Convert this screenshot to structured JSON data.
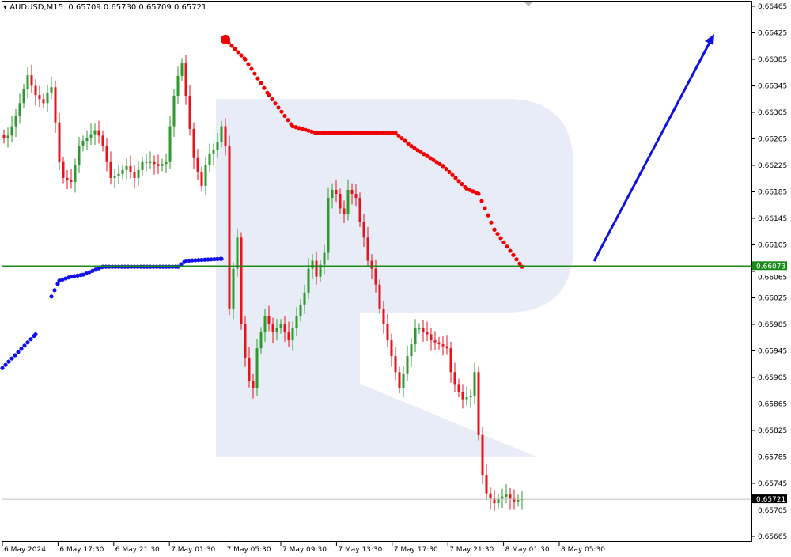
{
  "header": {
    "symbol": "AUDUSD,M15",
    "ohlc": "0.65709 0.65730 0.65709 0.65721"
  },
  "chart_data": {
    "type": "candlestick",
    "ylim": [
      0.65665,
      0.66465
    ],
    "y_ticks": [
      "0.66465",
      "0.66425",
      "0.66385",
      "0.66345",
      "0.66305",
      "0.66265",
      "0.66225",
      "0.66185",
      "0.66145",
      "0.66105",
      "0.66065",
      "0.66025",
      "0.65985",
      "0.65945",
      "0.65905",
      "0.65865",
      "0.65825",
      "0.65785",
      "0.65745",
      "0.65705",
      "0.65665"
    ],
    "x_ticks": [
      "6 May 2024",
      "6 May 17:30",
      "6 May 21:30",
      "7 May 01:30",
      "7 May 05:30",
      "7 May 09:30",
      "7 May 13:30",
      "7 May 17:30",
      "7 May 21:30",
      "8 May 01:30",
      "8 May 05:30"
    ],
    "closes": [
      0.66266,
      0.6627,
      0.66284,
      0.663,
      0.66319,
      0.6634,
      0.66361,
      0.66345,
      0.66331,
      0.66325,
      0.66319,
      0.66335,
      0.66343,
      0.6629,
      0.6623,
      0.66206,
      0.66203,
      0.662,
      0.66225,
      0.66254,
      0.66262,
      0.66266,
      0.66272,
      0.66278,
      0.6627,
      0.66254,
      0.6623,
      0.66206,
      0.66209,
      0.66212,
      0.66218,
      0.66224,
      0.66215,
      0.66206,
      0.66218,
      0.6623,
      0.6623,
      0.6623,
      0.66227,
      0.66224,
      0.66227,
      0.6623,
      0.66284,
      0.6633,
      0.6636,
      0.66379,
      0.6633,
      0.6628,
      0.66236,
      0.66215,
      0.66194,
      0.66225,
      0.66242,
      0.66248,
      0.6626,
      0.66284,
      0.66254,
      0.66009,
      0.66069,
      0.66116,
      0.65985,
      0.65935,
      0.659,
      0.65889,
      0.65949,
      0.65973,
      0.65997,
      0.65985,
      0.65973,
      0.65979,
      0.65985,
      0.65973,
      0.65961,
      0.65979,
      0.65997,
      0.66015,
      0.66033,
      0.66069,
      0.66081,
      0.66057,
      0.66075,
      0.66093,
      0.66176,
      0.66188,
      0.66182,
      0.6616,
      0.66152,
      0.66188,
      0.66182,
      0.66176,
      0.6614,
      0.66116,
      0.66081,
      0.66069,
      0.66045,
      0.66009,
      0.65985,
      0.65961,
      0.65937,
      0.65913,
      0.65889,
      0.6591,
      0.65937,
      0.65955,
      0.65979,
      0.65979,
      0.65973,
      0.6597,
      0.65961,
      0.65958,
      0.65955,
      0.65952,
      0.65949,
      0.65913,
      0.65895,
      0.65883,
      0.65872,
      0.65875,
      0.65877,
      0.65913,
      0.65818,
      0.65758,
      0.6573,
      0.65722,
      0.65715,
      0.65722,
      0.65725,
      0.65728,
      0.65722,
      0.65718,
      0.6572,
      0.65721
    ],
    "red_indicator": [
      [
        56,
        0.66415
      ],
      [
        61,
        0.66385
      ],
      [
        67,
        0.66331
      ],
      [
        73,
        0.66284
      ],
      [
        79,
        0.66274
      ],
      [
        99,
        0.66274
      ],
      [
        103,
        0.66254
      ],
      [
        111,
        0.66224
      ],
      [
        117,
        0.6619
      ],
      [
        120,
        0.66182
      ],
      [
        124,
        0.66128
      ],
      [
        131,
        0.66072
      ]
    ],
    "blue_indicator": [
      [
        -0.4,
        0.65919
      ],
      [
        8,
        0.6597
      ],
      [
        12,
        0.66027
      ],
      [
        14,
        0.66051
      ],
      [
        17,
        0.66057
      ],
      [
        20,
        0.6606
      ],
      [
        25,
        0.66072
      ],
      [
        44,
        0.66072
      ],
      [
        46,
        0.66081
      ],
      [
        55,
        0.66084
      ]
    ],
    "horizontal_level": "0.66073",
    "current_price": "0.65721",
    "colors": {
      "up": "#2e9a2e",
      "down": "#e8121a",
      "level": "#1a8a1a",
      "red_dots": "#f00000",
      "blue_dots": "#1010f0",
      "arrow": "#1010e0",
      "watermark": "#e8ecf6"
    }
  }
}
